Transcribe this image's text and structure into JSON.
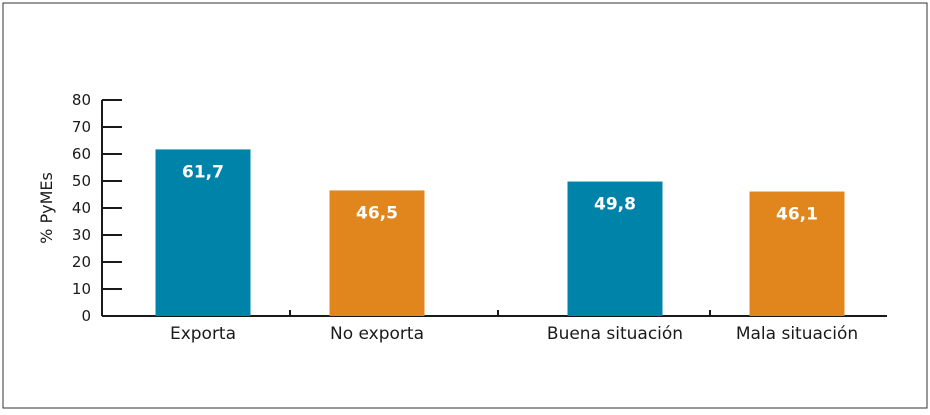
{
  "chart_data": {
    "type": "bar",
    "title": "",
    "xlabel": "",
    "ylabel": "% PyMEs",
    "ylim": [
      0,
      80
    ],
    "yticks": [
      0,
      10,
      20,
      30,
      40,
      50,
      60,
      70,
      80
    ],
    "categories": [
      "Exporta",
      "No exporta",
      "Buena situación",
      "Mala situación"
    ],
    "values": [
      61.7,
      46.5,
      49.8,
      46.1
    ],
    "data_labels": [
      "61,7",
      "46,5",
      "49,8",
      "46,1"
    ],
    "colors": [
      "#0083a9",
      "#e0861d",
      "#0083a9",
      "#e0861d"
    ],
    "grid": false,
    "legend": "none"
  }
}
